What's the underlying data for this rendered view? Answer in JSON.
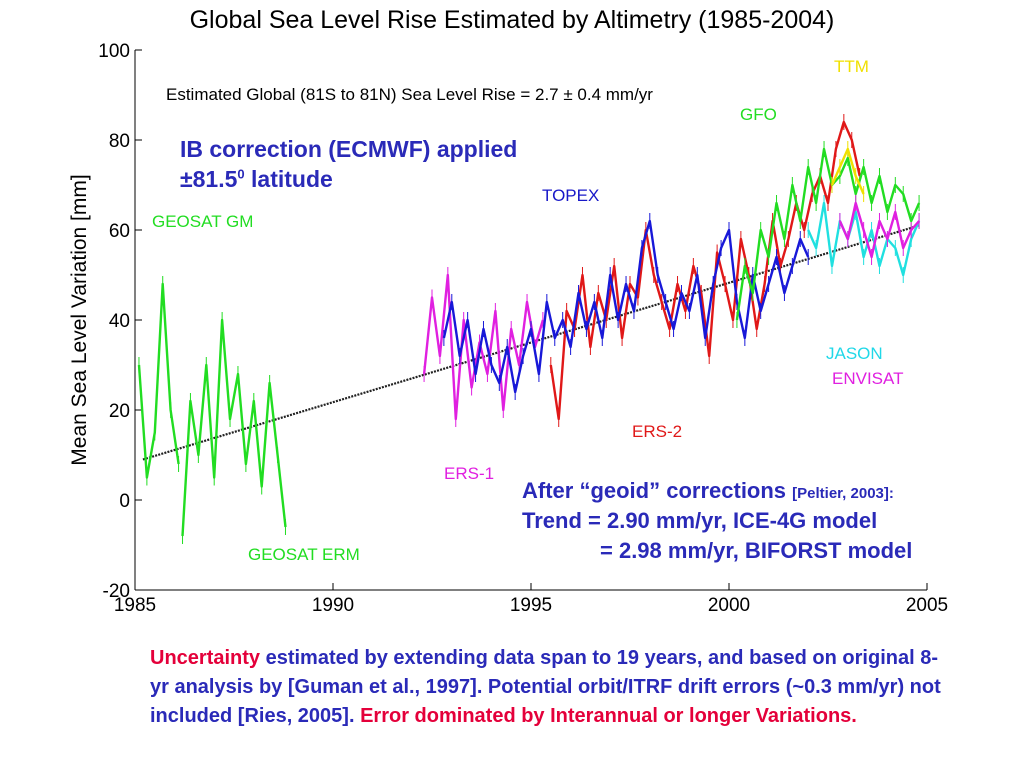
{
  "chart_data": {
    "type": "line",
    "title": "Global Sea Level Rise Estimated by Altimetry (1985-2004)",
    "subtitle": "Estimated Global (81S to 81N) Sea Level Rise = 2.7 ± 0.4 mm/yr",
    "xlabel": "",
    "ylabel": "Mean Sea Level Variation [mm]",
    "xlim": [
      1985,
      2005
    ],
    "ylim": [
      -20,
      100
    ],
    "xticks": [
      1985,
      1990,
      1995,
      2000,
      2005
    ],
    "yticks": [
      -20,
      0,
      20,
      40,
      60,
      80,
      100
    ],
    "grid": false,
    "trend": {
      "x": [
        1985.2,
        2004.8
      ],
      "y": [
        9,
        61
      ]
    },
    "series": [
      {
        "name": "GEOSAT GM",
        "color": "#22dd22",
        "x": [
          1985.1,
          1985.3,
          1985.5,
          1985.7,
          1985.9,
          1986.1
        ],
        "y": [
          30,
          5,
          15,
          48,
          20,
          8
        ]
      },
      {
        "name": "GEOSAT ERM",
        "color": "#22dd22",
        "x": [
          1986.2,
          1986.4,
          1986.6,
          1986.8,
          1987.0,
          1987.2,
          1987.4,
          1987.6,
          1987.8,
          1988.0,
          1988.2,
          1988.4,
          1988.6,
          1988.8
        ],
        "y": [
          -8,
          22,
          10,
          30,
          5,
          40,
          18,
          28,
          8,
          22,
          3,
          26,
          10,
          -6
        ]
      },
      {
        "name": "ERS-1",
        "color": "#e020e0",
        "x": [
          1992.3,
          1992.5,
          1992.7,
          1992.9,
          1993.1,
          1993.3,
          1993.5,
          1993.7,
          1993.9,
          1994.1,
          1994.3,
          1994.5,
          1994.7,
          1994.9,
          1995.1,
          1995.3
        ],
        "y": [
          28,
          45,
          32,
          50,
          18,
          40,
          25,
          35,
          28,
          42,
          20,
          38,
          30,
          44,
          34,
          40
        ]
      },
      {
        "name": "ERS-2",
        "color": "#e01818",
        "x": [
          1995.5,
          1995.7,
          1995.9,
          1996.1,
          1996.3,
          1996.5,
          1996.7,
          1996.9,
          1997.1,
          1997.3,
          1997.5,
          1997.7,
          1997.9,
          1998.1,
          1998.3,
          1998.5,
          1998.7,
          1998.9,
          1999.1,
          1999.3,
          1999.5,
          1999.7,
          1999.9,
          2000.1,
          2000.3,
          2000.5,
          2000.7,
          2000.9,
          2001.1,
          2001.3,
          2001.5,
          2001.7,
          2001.9,
          2002.1,
          2002.3,
          2002.5,
          2002.7,
          2002.9,
          2003.1,
          2003.3
        ],
        "y": [
          30,
          18,
          42,
          38,
          50,
          34,
          46,
          40,
          52,
          36,
          48,
          45,
          60,
          50,
          44,
          38,
          48,
          42,
          52,
          46,
          32,
          55,
          48,
          40,
          58,
          50,
          38,
          48,
          62,
          52,
          58,
          66,
          60,
          68,
          72,
          66,
          78,
          84,
          80,
          72
        ]
      },
      {
        "name": "TOPEX",
        "color": "#1818d8",
        "x": [
          1992.8,
          1993.0,
          1993.2,
          1993.4,
          1993.6,
          1993.8,
          1994.0,
          1994.2,
          1994.4,
          1994.6,
          1994.8,
          1995.0,
          1995.2,
          1995.4,
          1995.6,
          1995.8,
          1996.0,
          1996.2,
          1996.4,
          1996.6,
          1996.8,
          1997.0,
          1997.2,
          1997.4,
          1997.6,
          1997.8,
          1998.0,
          1998.2,
          1998.4,
          1998.6,
          1998.8,
          1999.0,
          1999.2,
          1999.4,
          1999.6,
          1999.8,
          2000.0,
          2000.2,
          2000.4,
          2000.6,
          2000.8,
          2001.0,
          2001.2,
          2001.4,
          2001.6,
          2001.8,
          2002.0
        ],
        "y": [
          36,
          44,
          32,
          40,
          28,
          38,
          30,
          26,
          34,
          24,
          32,
          38,
          28,
          44,
          36,
          40,
          34,
          46,
          38,
          44,
          36,
          50,
          40,
          48,
          42,
          56,
          62,
          50,
          44,
          38,
          46,
          42,
          50,
          36,
          48,
          56,
          60,
          44,
          36,
          50,
          42,
          48,
          54,
          46,
          52,
          58,
          54
        ]
      },
      {
        "name": "GFO",
        "color": "#22dd22",
        "x": [
          2000.2,
          2000.4,
          2000.6,
          2000.8,
          2001.0,
          2001.2,
          2001.4,
          2001.6,
          2001.8,
          2002.0,
          2002.2,
          2002.4,
          2002.6,
          2002.8,
          2003.0,
          2003.2,
          2003.4,
          2003.6,
          2003.8,
          2004.0,
          2004.2,
          2004.4,
          2004.6,
          2004.8
        ],
        "y": [
          40,
          52,
          46,
          60,
          54,
          66,
          58,
          70,
          62,
          74,
          66,
          78,
          70,
          72,
          76,
          68,
          74,
          66,
          72,
          64,
          70,
          68,
          62,
          66
        ]
      },
      {
        "name": "TTM",
        "color": "#f0e000",
        "x": [
          2002.6,
          2002.8,
          2003.0,
          2003.2,
          2003.4
        ],
        "y": [
          70,
          74,
          78,
          72,
          68
        ]
      },
      {
        "name": "JASON",
        "color": "#20e0e0",
        "x": [
          2002.0,
          2002.2,
          2002.4,
          2002.6,
          2002.8,
          2003.0,
          2003.2,
          2003.4,
          2003.6,
          2003.8,
          2004.0,
          2004.2,
          2004.4,
          2004.6,
          2004.8
        ],
        "y": [
          60,
          56,
          66,
          52,
          62,
          58,
          64,
          54,
          60,
          52,
          58,
          56,
          50,
          58,
          62
        ]
      },
      {
        "name": "ENVISAT",
        "color": "#e020e0",
        "x": [
          2002.8,
          2003.0,
          2003.2,
          2003.4,
          2003.6,
          2003.8,
          2004.0,
          2004.2,
          2004.4,
          2004.6,
          2004.8
        ],
        "y": [
          62,
          58,
          66,
          60,
          54,
          62,
          58,
          64,
          56,
          60,
          62
        ]
      }
    ]
  },
  "annotations": {
    "ib_line1": "IB correction (ECMWF) applied",
    "ib_line2_prefix": "±81.5",
    "ib_line2_sup": "0",
    "ib_line2_suffix": " latitude",
    "geoid_line1_main": "After “geoid” corrections ",
    "geoid_line1_ref": "[Peltier, 2003]:",
    "geoid_line2": "Trend = 2.90 mm/yr,  ICE-4G model",
    "geoid_line3": "= 2.98 mm/yr,  BIFORST model",
    "footnote_red1": "Uncertainty",
    "footnote_blue": " estimated by extending data span to 19 years, and based on original 8-yr analysis by [Guman et al., 1997]. Potential orbit/ITRF drift errors (~0.3 mm/yr) not included [Ries, 2005]. ",
    "footnote_red2": "Error dominated by Interannual or longer Variations."
  }
}
